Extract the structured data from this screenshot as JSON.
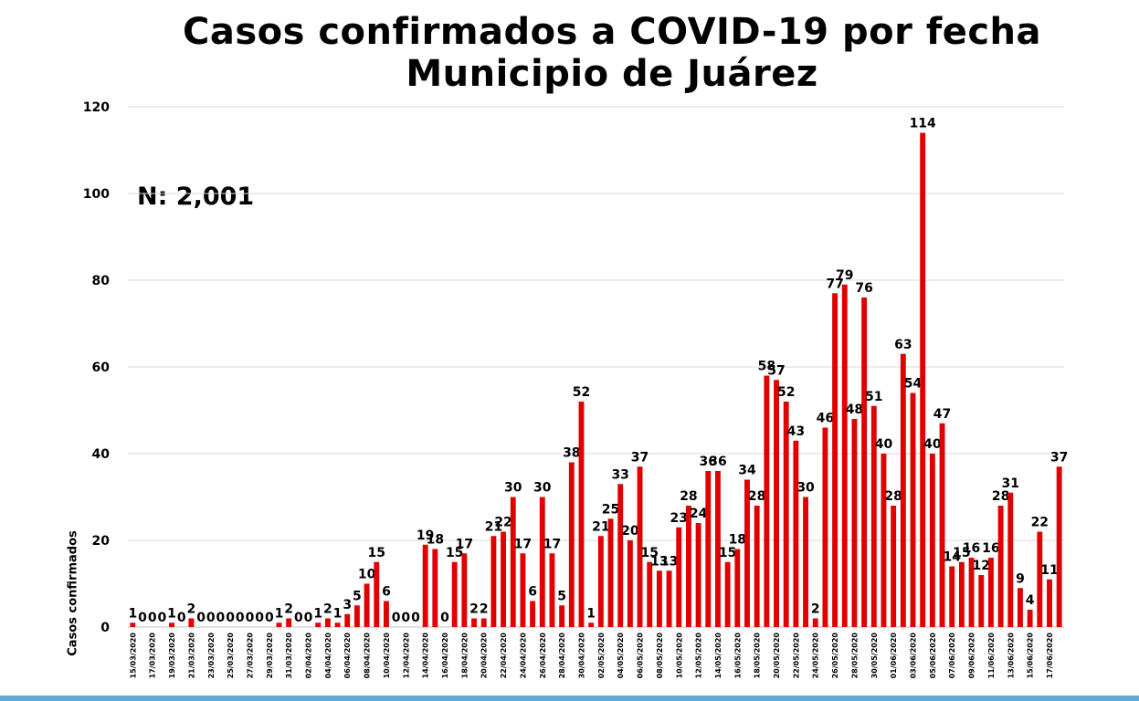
{
  "title_line1": "Casos confirmados a COVID-19 por fecha",
  "title_line2": "Municipio de Juárez",
  "n_label": "N: 2,001",
  "colors": {
    "bar": "#e00000",
    "grid": "#d9d9d9",
    "bottom_bar": "#5fa8d8"
  },
  "chart_data": {
    "type": "bar",
    "title": "Casos confirmados a COVID-19 por fecha Municipio de Juárez",
    "xlabel": "",
    "ylabel": "Casos confirmados",
    "ylim": [
      0,
      120
    ],
    "yticks": [
      0,
      20,
      40,
      60,
      80,
      100,
      120
    ],
    "grid": true,
    "categories": [
      "15/03/2020",
      "16/03/2020",
      "17/03/2020",
      "18/03/2020",
      "19/03/2020",
      "20/03/2020",
      "21/03/2020",
      "22/03/2020",
      "23/03/2020",
      "24/03/2020",
      "25/03/2020",
      "26/03/2020",
      "27/03/2020",
      "28/03/2020",
      "29/03/2020",
      "30/03/2020",
      "31/03/2020",
      "01/04/2020",
      "02/04/2020",
      "03/04/2020",
      "04/04/2020",
      "05/04/2020",
      "06/04/2020",
      "07/04/2020",
      "08/04/2020",
      "09/04/2020",
      "10/04/2020",
      "11/04/2020",
      "12/04/2020",
      "13/04/2020",
      "14/04/2020",
      "15/04/2020",
      "16/04/2020",
      "17/04/2020",
      "18/04/2020",
      "19/04/2020",
      "20/04/2020",
      "21/04/2020",
      "22/04/2020",
      "23/04/2020",
      "24/04/2020",
      "25/04/2020",
      "26/04/2020",
      "27/04/2020",
      "28/04/2020",
      "29/04/2020",
      "30/04/2020",
      "01/05/2020",
      "02/05/2020",
      "03/05/2020",
      "04/05/2020",
      "05/05/2020",
      "06/05/2020",
      "07/05/2020",
      "08/05/2020",
      "09/05/2020",
      "10/05/2020",
      "11/05/2020",
      "12/05/2020",
      "13/05/2020",
      "14/05/2020",
      "15/05/2020",
      "16/05/2020",
      "17/05/2020",
      "18/05/2020",
      "19/05/2020",
      "20/05/2020",
      "21/05/2020",
      "22/05/2020",
      "23/05/2020",
      "24/05/2020",
      "25/05/2020",
      "26/05/2020",
      "27/05/2020",
      "28/05/2020",
      "29/05/2020",
      "30/05/2020",
      "31/05/2020",
      "01/06/2020",
      "02/06/2020",
      "03/06/2020",
      "04/06/2020",
      "05/06/2020",
      "06/06/2020",
      "07/06/2020",
      "08/06/2020",
      "09/06/2020",
      "10/06/2020",
      "11/06/2020",
      "12/06/2020",
      "13/06/2020",
      "14/06/2020",
      "15/06/2020",
      "16/06/2020",
      "17/06/2020",
      "18/06/2020"
    ],
    "tick_labels_shown": [
      "15/03/2020",
      "17/03/2020",
      "19/03/2020",
      "21/03/2020",
      "23/03/2020",
      "25/03/2020",
      "27/03/2020",
      "29/03/2020",
      "31/03/2020",
      "02/04/2020",
      "04/04/2020",
      "06/04/2020",
      "08/04/2020",
      "10/04/2020",
      "12/04/2020",
      "14/04/2020",
      "16/04/2020",
      "18/04/2020",
      "20/04/2020",
      "22/04/2020",
      "24/04/2020",
      "26/04/2020",
      "28/04/2020",
      "30/04/2020",
      "02/05/2020",
      "04/05/2020",
      "06/05/2020",
      "08/05/2020",
      "10/05/2020",
      "12/05/2020",
      "14/05/2020",
      "16/05/2020",
      "18/05/2020",
      "20/05/2020",
      "22/05/2020",
      "24/05/2020",
      "26/05/2020",
      "28/05/2020",
      "30/05/2020",
      "01/06/2020",
      "03/06/2020",
      "05/06/2020",
      "07/06/2020",
      "09/06/2020",
      "11/06/2020",
      "13/06/2020",
      "15/06/2020",
      "17/06/2020"
    ],
    "values": [
      1,
      0,
      0,
      0,
      1,
      0,
      2,
      0,
      0,
      0,
      0,
      0,
      0,
      0,
      0,
      1,
      2,
      0,
      0,
      1,
      2,
      1,
      3,
      5,
      10,
      15,
      6,
      0,
      0,
      0,
      19,
      18,
      0,
      15,
      17,
      2,
      2,
      21,
      22,
      30,
      17,
      6,
      30,
      17,
      5,
      38,
      52,
      1,
      21,
      25,
      33,
      20,
      37,
      15,
      13,
      13,
      23,
      28,
      24,
      36,
      36,
      15,
      18,
      34,
      28,
      58,
      57,
      52,
      43,
      30,
      2,
      46,
      77,
      79,
      48,
      76,
      51,
      40,
      28,
      63,
      54,
      114,
      40,
      47,
      14,
      15,
      16,
      12,
      16,
      28,
      31,
      9,
      4,
      22,
      11,
      37
    ]
  }
}
